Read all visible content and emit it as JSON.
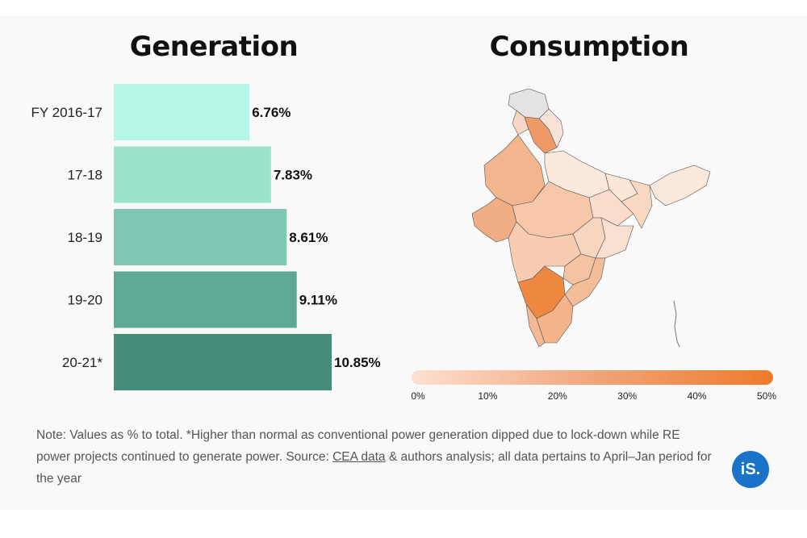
{
  "generation": {
    "title": "Generation"
  },
  "consumption": {
    "title": "Consumption",
    "scale_ticks": [
      "0%",
      "10%",
      "20%",
      "30%",
      "40%",
      "50%"
    ],
    "scale_colors": {
      "low": "#fde0d0",
      "high": "#f07a2a"
    }
  },
  "chart_data": {
    "type": "bar",
    "orientation": "horizontal",
    "categories": [
      "FY 2016-17",
      "17-18",
      "18-19",
      "19-20",
      "20-21*"
    ],
    "values": [
      6.76,
      7.83,
      8.61,
      9.11,
      10.85
    ],
    "value_labels": [
      "6.76%",
      "7.83%",
      "8.61%",
      "9.11%",
      "10.85%"
    ],
    "colors": [
      "#b5f7e6",
      "#9be3cd",
      "#7fc6b3",
      "#5fa896",
      "#468c7a"
    ],
    "xlim": [
      0,
      10.85
    ]
  },
  "note": {
    "text_before": "Note: Values as % to total. *Higher than normal as conventional power generation dipped due to lock-down while RE power projects continued to generate power. Source: ",
    "link": "CEA data",
    "text_after": " & authors analysis; all data pertains to April–Jan period for the year"
  },
  "logo": {
    "text": "iS."
  }
}
